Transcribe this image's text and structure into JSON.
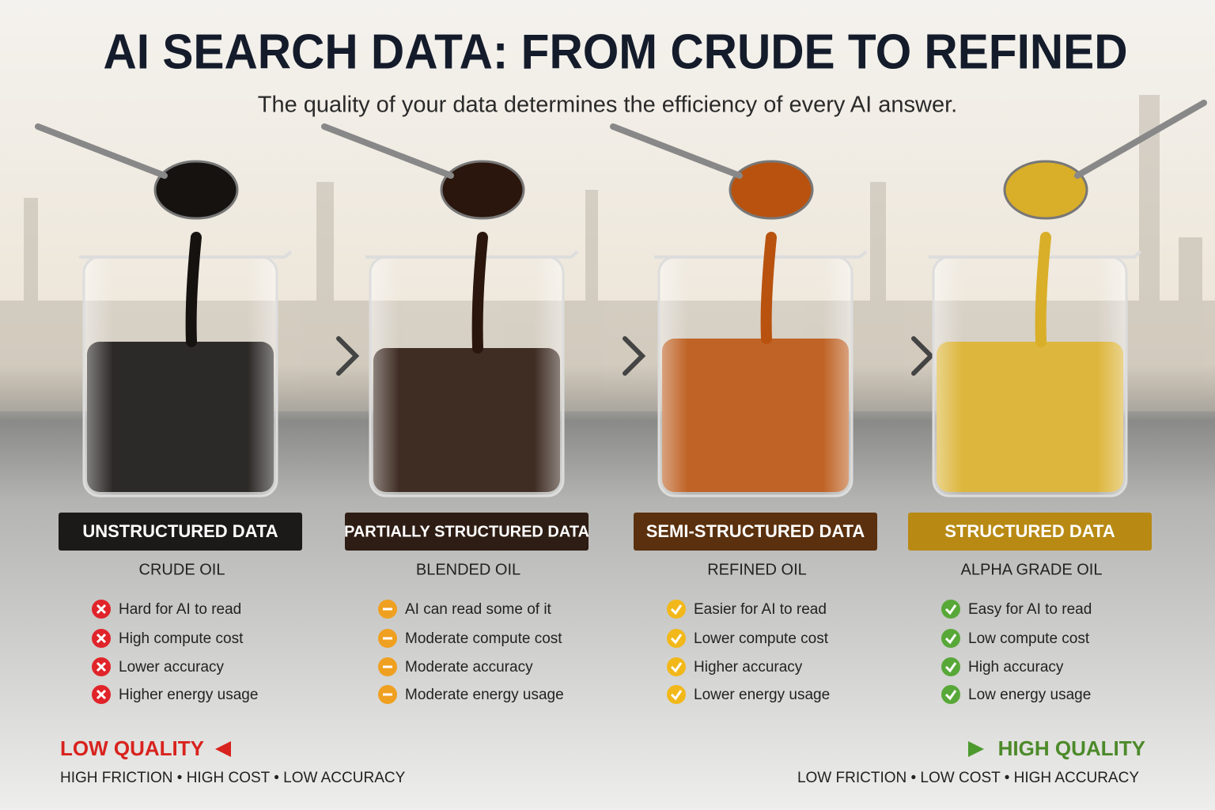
{
  "header": {
    "title": "AI SEARCH DATA: FROM CRUDE TO REFINED",
    "subtitle": "The quality of your data determines the efficiency of every AI answer."
  },
  "columns": [
    {
      "label": "UNSTRUCTURED DATA",
      "grade": "CRUDE OIL",
      "items": [
        "Hard for AI to read",
        "High compute cost",
        "Lower accuracy",
        "Higher energy usage"
      ]
    },
    {
      "label": "PARTIALLY STRUCTURED DATA",
      "grade": "BLENDED OIL",
      "items": [
        "AI can read some of it",
        "Moderate compute cost",
        "Moderate accuracy",
        "Moderate energy usage"
      ]
    },
    {
      "label": "SEMI-STRUCTURED DATA",
      "grade": "REFINED OIL",
      "items": [
        "Easier for AI to read",
        "Lower compute cost",
        "Higher accuracy",
        "Lower energy usage"
      ]
    },
    {
      "label": "STRUCTURED DATA",
      "grade": "ALPHA GRADE OIL",
      "items": [
        "Easy for AI to read",
        "Low compute cost",
        "High accuracy",
        "Low energy usage"
      ]
    }
  ],
  "footer": {
    "low_label": "LOW QUALITY",
    "low_desc": "HIGH FRICTION • HIGH COST • LOW ACCURACY",
    "high_label": "HIGH QUALITY",
    "high_desc": "LOW FRICTION • LOW COST • HIGH ACCURACY"
  }
}
